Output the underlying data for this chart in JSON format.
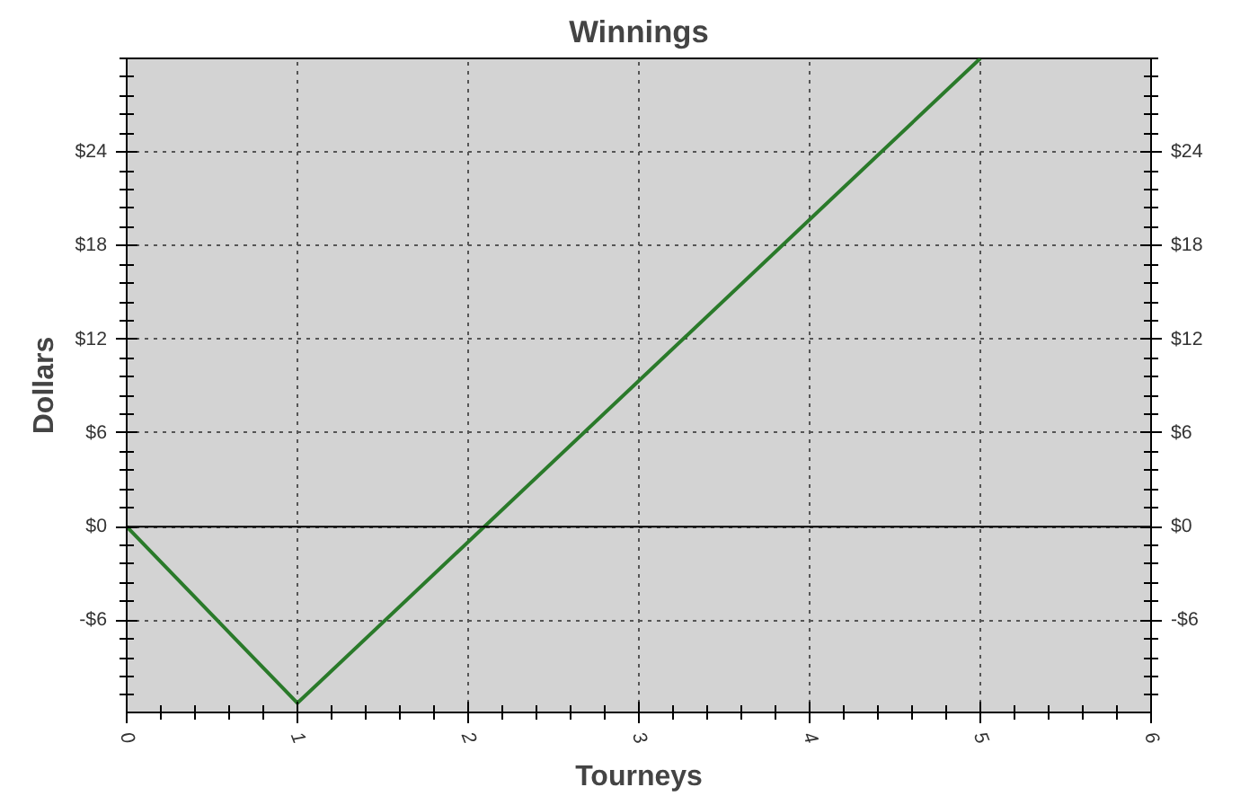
{
  "chart_data": {
    "type": "line",
    "title": "Winnings",
    "xlabel": "Tourneys",
    "ylabel": "Dollars",
    "x": [
      0,
      1,
      5
    ],
    "series": [
      {
        "color": "#2a7a2a",
        "values": [
          0,
          -11.3,
          30
        ]
      }
    ],
    "xlim": [
      0,
      6
    ],
    "xticks": [
      0,
      1,
      2,
      3,
      4,
      5,
      6
    ],
    "ylim": [
      -11.9,
      30
    ],
    "yticks": [
      {
        "value": -6,
        "label": "-$6"
      },
      {
        "value": 0,
        "label": "$0"
      },
      {
        "value": 6,
        "label": "$6"
      },
      {
        "value": 12,
        "label": "$12"
      },
      {
        "value": 18,
        "label": "$18"
      },
      {
        "value": 24,
        "label": "$24"
      }
    ],
    "y2lim": [
      -11.9,
      30
    ],
    "y2ticks": [
      {
        "value": -6,
        "label": "-$6"
      },
      {
        "value": 0,
        "label": "$0"
      },
      {
        "value": 6,
        "label": "$6"
      },
      {
        "value": 12,
        "label": "$12"
      },
      {
        "value": 18,
        "label": "$18"
      },
      {
        "value": 24,
        "label": "$24"
      }
    ],
    "ref_lines": [
      {
        "axis": "y",
        "value": 0,
        "color": "#000000"
      }
    ],
    "grid": true,
    "marker": "none",
    "line_style": "solid"
  }
}
